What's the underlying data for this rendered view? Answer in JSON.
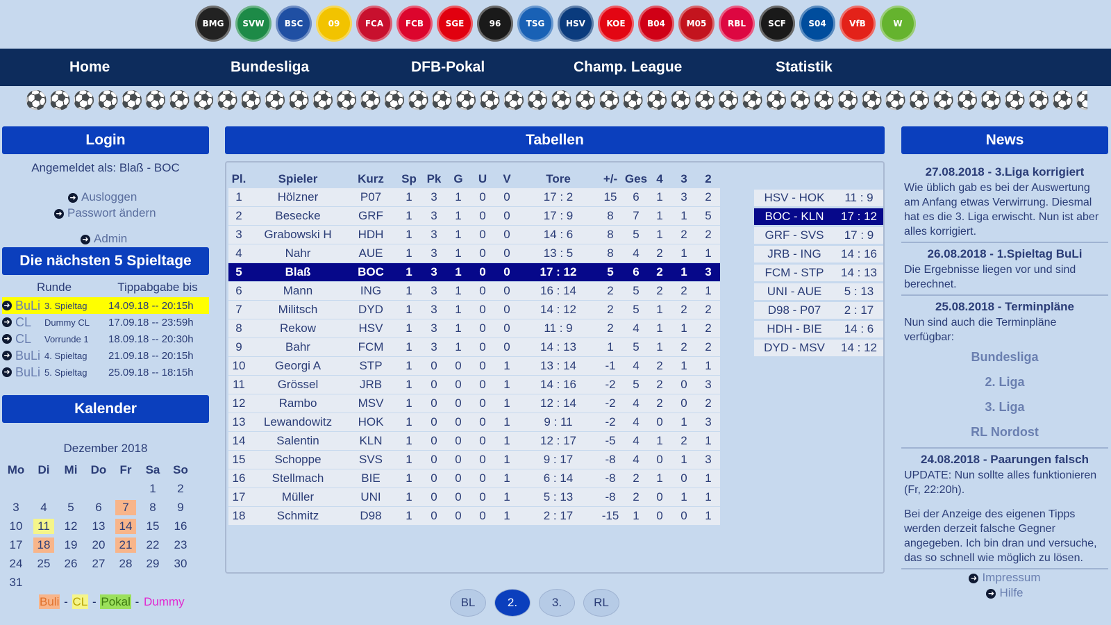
{
  "logos": [
    {
      "name": "gladbach",
      "color": "#222222",
      "abbr": "BMG"
    },
    {
      "name": "werder",
      "color": "#1d8a47",
      "abbr": "SVW"
    },
    {
      "name": "hertha",
      "color": "#1f4fa3",
      "abbr": "BSC"
    },
    {
      "name": "dortmund",
      "color": "#f2c300",
      "abbr": "09"
    },
    {
      "name": "augsburg",
      "color": "#c8102e",
      "abbr": "FCA"
    },
    {
      "name": "bayern",
      "color": "#dc052d",
      "abbr": "FCB"
    },
    {
      "name": "frankfurt",
      "color": "#e1000f",
      "abbr": "SGE"
    },
    {
      "name": "hannover",
      "color": "#1a1a1a",
      "abbr": "96"
    },
    {
      "name": "hoffenheim",
      "color": "#1961b5",
      "abbr": "TSG"
    },
    {
      "name": "hsv",
      "color": "#0a3b7d",
      "abbr": "HSV"
    },
    {
      "name": "koeln",
      "color": "#e30613",
      "abbr": "KOE"
    },
    {
      "name": "leverkusen",
      "color": "#d00016",
      "abbr": "B04"
    },
    {
      "name": "mainz",
      "color": "#c3141e",
      "abbr": "M05"
    },
    {
      "name": "leipzig",
      "color": "#dd0741",
      "abbr": "RBL"
    },
    {
      "name": "freiburg",
      "color": "#1a1a1a",
      "abbr": "SCF"
    },
    {
      "name": "schalke",
      "color": "#004d9d",
      "abbr": "S04"
    },
    {
      "name": "stuttgart",
      "color": "#e32219",
      "abbr": "VfB"
    },
    {
      "name": "wolfsburg",
      "color": "#65b32e",
      "abbr": "W"
    }
  ],
  "nav": [
    "Home",
    "Bundesliga",
    "DFB-Pokal",
    "Champ. League",
    "Statistik"
  ],
  "login": {
    "title": "Login",
    "logged_in_label": "Angemeldet als:",
    "user": "Blaß - BOC",
    "logout": "Ausloggen",
    "change_password": "Passwort ändern",
    "admin": "Admin"
  },
  "spieltage": {
    "title": "Die nächsten 5 Spieltage",
    "col_runde": "Runde",
    "col_tipp": "Tippabgabe bis",
    "rows": [
      {
        "typ": "BuLi",
        "spieltag": "3. Spieltag",
        "datum": "14.09.18 -- 20:15h"
      },
      {
        "typ": "CL",
        "spieltag": "Dummy CL",
        "datum": "17.09.18 -- 23:59h"
      },
      {
        "typ": "CL",
        "spieltag": "Vorrunde 1",
        "datum": "18.09.18 -- 20:30h"
      },
      {
        "typ": "BuLi",
        "spieltag": "4. Spieltag",
        "datum": "21.09.18 -- 20:15h"
      },
      {
        "typ": "BuLi",
        "spieltag": "5. Spieltag",
        "datum": "25.09.18 -- 18:15h"
      }
    ]
  },
  "kalender": {
    "title": "Kalender",
    "month": "Dezember 2018",
    "weekdays": [
      "Mo",
      "Di",
      "Mi",
      "Do",
      "Fr",
      "Sa",
      "So"
    ],
    "first_weekday_index": 5,
    "days": 31,
    "buli_days": [
      7,
      14,
      18,
      21
    ],
    "cl_days": [
      11
    ],
    "legend": {
      "buli": "Buli",
      "cl": "CL",
      "pokal": "Pokal",
      "dummy": "Dummy",
      "sep": "-"
    }
  },
  "tabellen": {
    "title": "Tabellen",
    "headers": [
      "Pl.",
      "Spieler",
      "Kurz",
      "Sp",
      "Pk",
      "G",
      "U",
      "V",
      "Tore",
      "+/-",
      "Ges",
      "4",
      "3",
      "2"
    ],
    "rows": [
      [
        "1",
        "Hölzner",
        "P07",
        "1",
        "3",
        "1",
        "0",
        "0",
        "17 : 2",
        "15",
        "6",
        "1",
        "3",
        "2"
      ],
      [
        "2",
        "Besecke",
        "GRF",
        "1",
        "3",
        "1",
        "0",
        "0",
        "17 : 9",
        "8",
        "7",
        "1",
        "1",
        "5"
      ],
      [
        "3",
        "Grabowski H",
        "HDH",
        "1",
        "3",
        "1",
        "0",
        "0",
        "14 : 6",
        "8",
        "5",
        "1",
        "2",
        "2"
      ],
      [
        "4",
        "Nahr",
        "AUE",
        "1",
        "3",
        "1",
        "0",
        "0",
        "13 : 5",
        "8",
        "4",
        "2",
        "1",
        "1"
      ],
      [
        "5",
        "Blaß",
        "BOC",
        "1",
        "3",
        "1",
        "0",
        "0",
        "17 : 12",
        "5",
        "6",
        "2",
        "1",
        "3"
      ],
      [
        "6",
        "Mann",
        "ING",
        "1",
        "3",
        "1",
        "0",
        "0",
        "16 : 14",
        "2",
        "5",
        "2",
        "2",
        "1"
      ],
      [
        "7",
        "Militsch",
        "DYD",
        "1",
        "3",
        "1",
        "0",
        "0",
        "14 : 12",
        "2",
        "5",
        "1",
        "2",
        "2"
      ],
      [
        "8",
        "Rekow",
        "HSV",
        "1",
        "3",
        "1",
        "0",
        "0",
        "11 : 9",
        "2",
        "4",
        "1",
        "1",
        "2"
      ],
      [
        "9",
        "Bahr",
        "FCM",
        "1",
        "3",
        "1",
        "0",
        "0",
        "14 : 13",
        "1",
        "5",
        "1",
        "2",
        "2"
      ],
      [
        "10",
        "Georgi A",
        "STP",
        "1",
        "0",
        "0",
        "0",
        "1",
        "13 : 14",
        "-1",
        "4",
        "2",
        "1",
        "1"
      ],
      [
        "11",
        "Grössel",
        "JRB",
        "1",
        "0",
        "0",
        "0",
        "1",
        "14 : 16",
        "-2",
        "5",
        "2",
        "0",
        "3"
      ],
      [
        "12",
        "Rambo",
        "MSV",
        "1",
        "0",
        "0",
        "0",
        "1",
        "12 : 14",
        "-2",
        "4",
        "2",
        "0",
        "2"
      ],
      [
        "13",
        "Lewandowitz",
        "HOK",
        "1",
        "0",
        "0",
        "0",
        "1",
        "9 : 11",
        "-2",
        "4",
        "0",
        "1",
        "3"
      ],
      [
        "14",
        "Salentin",
        "KLN",
        "1",
        "0",
        "0",
        "0",
        "1",
        "12 : 17",
        "-5",
        "4",
        "1",
        "2",
        "1"
      ],
      [
        "15",
        "Schoppe",
        "SVS",
        "1",
        "0",
        "0",
        "0",
        "1",
        "9 : 17",
        "-8",
        "4",
        "0",
        "1",
        "3"
      ],
      [
        "16",
        "Stellmach",
        "BIE",
        "1",
        "0",
        "0",
        "0",
        "1",
        "6 : 14",
        "-8",
        "2",
        "1",
        "0",
        "1"
      ],
      [
        "17",
        "Müller",
        "UNI",
        "1",
        "0",
        "0",
        "0",
        "1",
        "5 : 13",
        "-8",
        "2",
        "0",
        "1",
        "1"
      ],
      [
        "18",
        "Schmitz",
        "D98",
        "1",
        "0",
        "0",
        "0",
        "1",
        "2 : 17",
        "-15",
        "1",
        "0",
        "0",
        "1"
      ]
    ],
    "highlight_row": 5,
    "matches": [
      {
        "p": "HSV - HOK",
        "s": "11 : 9"
      },
      {
        "p": "BOC - KLN",
        "s": "17 : 12",
        "me": true
      },
      {
        "p": "GRF - SVS",
        "s": "17 : 9"
      },
      {
        "p": "JRB - ING",
        "s": "14 : 16"
      },
      {
        "p": "FCM - STP",
        "s": "14 : 13"
      },
      {
        "p": "UNI - AUE",
        "s": "5 : 13"
      },
      {
        "p": "D98 - P07",
        "s": "2 : 17"
      },
      {
        "p": "HDH - BIE",
        "s": "14 : 6"
      },
      {
        "p": "DYD - MSV",
        "s": "14 : 12"
      }
    ],
    "tabs": [
      "BL",
      "2.",
      "3.",
      "RL"
    ],
    "active_tab": 1
  },
  "news": {
    "title": "News",
    "items": [
      {
        "title": "27.08.2018 - 3.Liga korrigiert",
        "text": "Wie üblich gab es bei der Auswertung am Anfang etwas Verwirrung. Diesmal hat es die 3. Liga erwischt. Nun ist aber alles korrigiert."
      },
      {
        "title": "26.08.2018 - 1.Spieltag BuLi",
        "text": "Die Ergebnisse liegen vor und sind berechnet."
      },
      {
        "title": "25.08.2018 - Terminpläne",
        "text": "Nun sind auch die Terminpläne verfügbar:",
        "links": [
          "Bundesliga",
          "2. Liga",
          "3. Liga",
          "RL Nordost"
        ]
      },
      {
        "title": "24.08.2018 - Paarungen falsch",
        "text": "UPDATE: Nun sollte alles funktionieren (Fr, 22:20h).",
        "text2": "Bei der Anzeige des eigenen Tipps werden derzeit falsche Gegner angegeben. Ich bin dran und versuche, das so schnell wie möglich zu lösen."
      }
    ],
    "footer": [
      "Impressum",
      "Hilfe"
    ]
  },
  "colors": {
    "nav_bg": "#0d2c5c",
    "header_blue": "#0b3fbd",
    "highlight": "#06088a",
    "page_bg": "#c7d9ee"
  }
}
